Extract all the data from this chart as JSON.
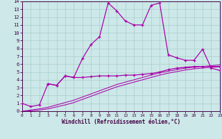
{
  "xlabel": "Windchill (Refroidissement éolien,°C)",
  "xlim": [
    0,
    23
  ],
  "ylim": [
    0,
    14
  ],
  "xticks": [
    0,
    1,
    2,
    3,
    4,
    5,
    6,
    7,
    8,
    9,
    10,
    11,
    12,
    13,
    14,
    15,
    16,
    17,
    18,
    19,
    20,
    21,
    22,
    23
  ],
  "yticks": [
    0,
    1,
    2,
    3,
    4,
    5,
    6,
    7,
    8,
    9,
    10,
    11,
    12,
    13,
    14
  ],
  "background_color": "#cce8e8",
  "line_color": "#aa00aa",
  "grid_color": "#aacccc",
  "line1_x": [
    0,
    1,
    2,
    3,
    4,
    5,
    6,
    7,
    8,
    9,
    10,
    11,
    12,
    13,
    14,
    15,
    16,
    17,
    18,
    19,
    20,
    21,
    22,
    23
  ],
  "line1_y": [
    1.0,
    0.6,
    0.8,
    3.5,
    3.3,
    4.5,
    4.3,
    6.7,
    8.5,
    9.5,
    13.8,
    12.8,
    11.5,
    11.0,
    11.0,
    13.5,
    13.8,
    7.2,
    6.8,
    6.5,
    6.5,
    7.9,
    5.5,
    5.2
  ],
  "line2_x": [
    3,
    4,
    5,
    6,
    7,
    8,
    9,
    10,
    11,
    12,
    13,
    14,
    15,
    16,
    17,
    18,
    19,
    20,
    21,
    22,
    23
  ],
  "line2_y": [
    3.5,
    3.3,
    4.5,
    4.3,
    4.3,
    4.4,
    4.5,
    4.5,
    4.5,
    4.6,
    4.6,
    4.7,
    4.8,
    5.0,
    5.3,
    5.5,
    5.6,
    5.7,
    5.7,
    5.7,
    5.7
  ],
  "line3_x": [
    0,
    1,
    2,
    3,
    4,
    5,
    6,
    7,
    8,
    9,
    10,
    11,
    12,
    13,
    14,
    15,
    16,
    17,
    18,
    19,
    20,
    21,
    22,
    23
  ],
  "line3_y": [
    0.0,
    0.15,
    0.3,
    0.5,
    0.8,
    1.1,
    1.4,
    1.8,
    2.2,
    2.6,
    3.0,
    3.4,
    3.7,
    4.0,
    4.3,
    4.6,
    4.9,
    5.1,
    5.3,
    5.5,
    5.6,
    5.7,
    5.8,
    5.9
  ],
  "line4_x": [
    0,
    1,
    2,
    3,
    4,
    5,
    6,
    7,
    8,
    9,
    10,
    11,
    12,
    13,
    14,
    15,
    16,
    17,
    18,
    19,
    20,
    21,
    22,
    23
  ],
  "line4_y": [
    0.0,
    0.05,
    0.15,
    0.3,
    0.55,
    0.8,
    1.1,
    1.5,
    1.9,
    2.3,
    2.7,
    3.1,
    3.4,
    3.7,
    4.0,
    4.3,
    4.6,
    4.85,
    5.05,
    5.25,
    5.4,
    5.5,
    5.6,
    5.65
  ]
}
